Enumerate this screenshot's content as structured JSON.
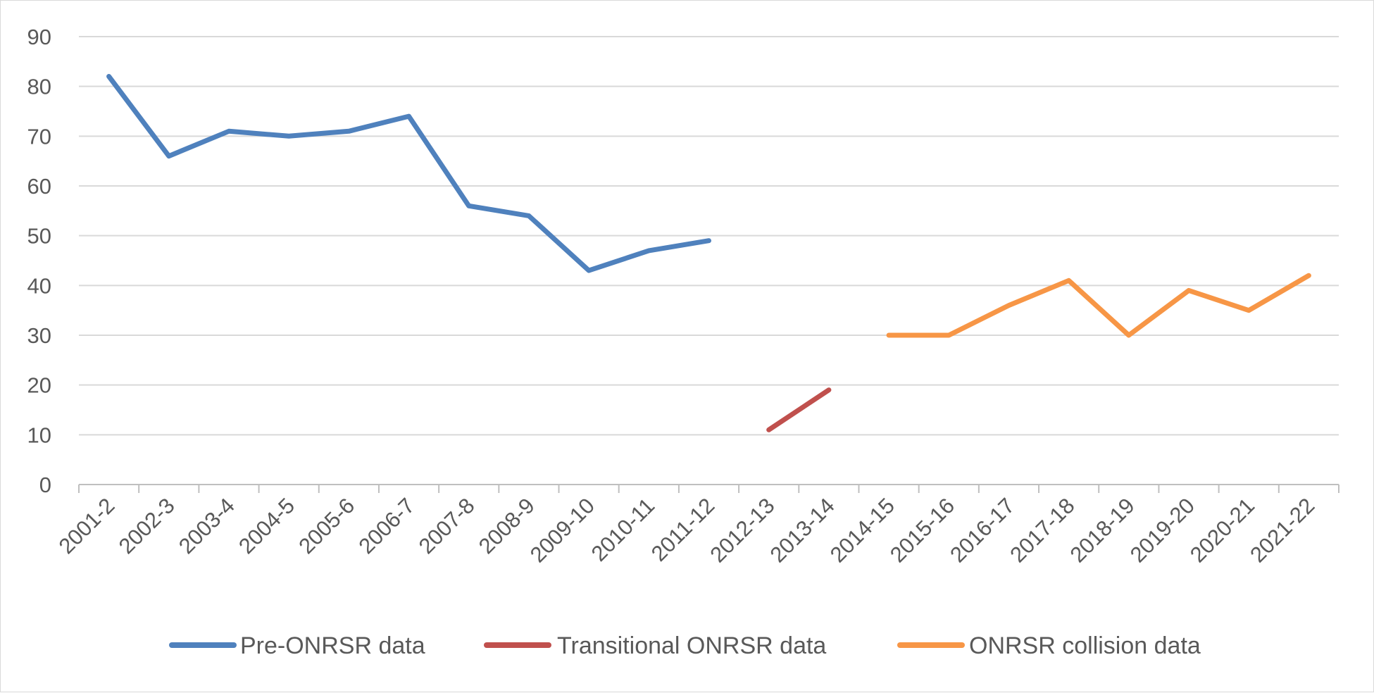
{
  "chart_data": {
    "type": "line",
    "title": "",
    "xlabel": "",
    "ylabel": "",
    "ylim": [
      0,
      90
    ],
    "y_ticks": [
      0,
      10,
      20,
      30,
      40,
      50,
      60,
      70,
      80,
      90
    ],
    "grid": "horizontal",
    "legend_position": "bottom",
    "categories": [
      "2001-2",
      "2002-3",
      "2003-4",
      "2004-5",
      "2005-6",
      "2006-7",
      "2007-8",
      "2008-9",
      "2009-10",
      "2010-11",
      "2011-12",
      "2012-13",
      "2013-14",
      "2014-15",
      "2015-16",
      "2016-17",
      "2017-18",
      "2018-19",
      "2019-20",
      "2020-21",
      "2021-22"
    ],
    "series": [
      {
        "name": "Pre-ONRSR data",
        "color": "#4f81bd",
        "values": [
          82,
          66,
          71,
          70,
          71,
          74,
          56,
          54,
          43,
          47,
          49,
          null,
          null,
          null,
          null,
          null,
          null,
          null,
          null,
          null,
          null
        ]
      },
      {
        "name": "Transitional ONRSR data",
        "color": "#c0504d",
        "values": [
          null,
          null,
          null,
          null,
          null,
          null,
          null,
          null,
          null,
          null,
          null,
          11,
          19,
          null,
          null,
          null,
          null,
          null,
          null,
          null,
          null
        ]
      },
      {
        "name": "ONRSR collision data",
        "color": "#f79646",
        "values": [
          null,
          null,
          null,
          null,
          null,
          null,
          null,
          null,
          null,
          null,
          null,
          null,
          null,
          30,
          30,
          36,
          41,
          30,
          39,
          35,
          42
        ]
      }
    ]
  }
}
